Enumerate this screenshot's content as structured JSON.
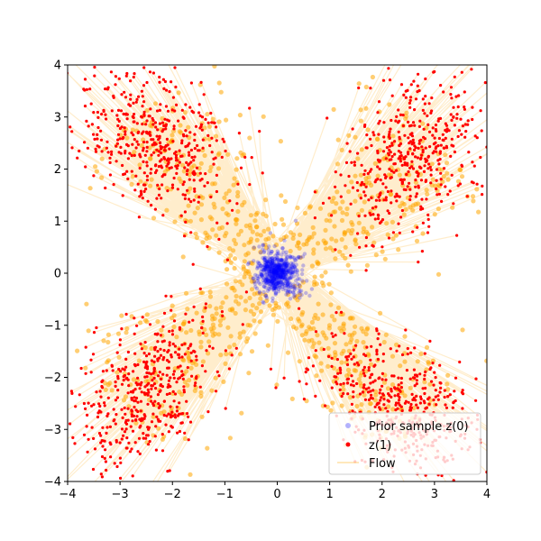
{
  "chart_data": {
    "type": "scatter",
    "title": "",
    "xlabel": "",
    "ylabel": "",
    "xlim": [
      -4,
      4
    ],
    "ylim": [
      -4,
      4
    ],
    "xticks": [
      "−4",
      "−3",
      "−2",
      "−1",
      "0",
      "1",
      "2",
      "3",
      "4"
    ],
    "yticks": [
      "−4",
      "−3",
      "−2",
      "−1",
      "0",
      "1",
      "2",
      "3",
      "4"
    ],
    "grid": false,
    "legend_position": "lower-right",
    "description": "Flow-matching visualization: prior samples near origin, flow lines to target samples arranged in four arms (pinwheel)",
    "arms": [
      {
        "direction_deg": 40,
        "center_radius": 3.4
      },
      {
        "direction_deg": 130,
        "center_radius": 3.4
      },
      {
        "direction_deg": 220,
        "center_radius": 3.4
      },
      {
        "direction_deg": 310,
        "center_radius": 3.4
      }
    ],
    "series": [
      {
        "name": "Prior sample z(0)",
        "kind": "points",
        "color": "#0000ff",
        "opacity": 0.25
      },
      {
        "name": "z(1)",
        "kind": "points",
        "color": "#ff0000",
        "opacity": 1.0
      },
      {
        "name": "Flow",
        "kind": "lines",
        "color": "#ffa500",
        "opacity": 0.2
      }
    ]
  },
  "legend": {
    "items": [
      {
        "label": "Prior sample z(0)"
      },
      {
        "label": "z(1)"
      },
      {
        "label": "Flow"
      }
    ]
  }
}
